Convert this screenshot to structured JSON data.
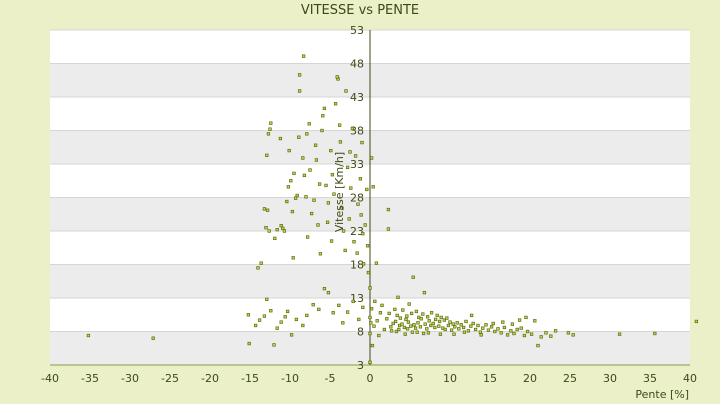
{
  "chart_data": {
    "type": "scatter",
    "title": "VITESSE vs PENTE",
    "xlabel": "Pente [%]",
    "ylabel": "Vitesse [Km/h]",
    "xlim": [
      -40,
      40
    ],
    "ylim": [
      3,
      53
    ],
    "xticks": [
      -40,
      -35,
      -30,
      -25,
      -20,
      -15,
      -10,
      -5,
      0,
      5,
      10,
      15,
      20,
      25,
      30,
      35,
      40
    ],
    "yticks": [
      3,
      8,
      13,
      18,
      23,
      28,
      33,
      38,
      43,
      48,
      53
    ],
    "grid": "horizontal bands",
    "colors": {
      "background": "#ecf0c8",
      "band_light": "#ffffff",
      "band_dark": "#ececec",
      "point_fill": "#c8d84a",
      "point_stroke": "#556b10",
      "text": "#3a4a14"
    },
    "series": [
      {
        "points": [
          [
            -35.2,
            7.4
          ],
          [
            -27.1,
            7.0
          ],
          [
            -15.2,
            10.5
          ],
          [
            -15.1,
            6.2
          ],
          [
            -14.3,
            8.9
          ],
          [
            -13.8,
            9.7
          ],
          [
            -13.2,
            10.3
          ],
          [
            -12.9,
            12.8
          ],
          [
            -12.4,
            11.1
          ],
          [
            -12.0,
            6.0
          ],
          [
            -11.6,
            8.5
          ],
          [
            -11.1,
            9.4
          ],
          [
            -10.6,
            10.2
          ],
          [
            -10.3,
            11.0
          ],
          [
            -9.8,
            7.5
          ],
          [
            -9.2,
            9.8
          ],
          [
            -8.4,
            8.9
          ],
          [
            -7.9,
            10.4
          ],
          [
            -7.1,
            12.0
          ],
          [
            -6.4,
            11.3
          ],
          [
            -5.7,
            14.4
          ],
          [
            -5.2,
            13.8
          ],
          [
            -4.6,
            10.8
          ],
          [
            -3.9,
            11.9
          ],
          [
            -3.4,
            9.3
          ],
          [
            -2.8,
            10.9
          ],
          [
            -2.1,
            12.5
          ],
          [
            -1.4,
            9.8
          ],
          [
            -0.9,
            11.6
          ],
          [
            -14.0,
            17.5
          ],
          [
            -13.6,
            18.2
          ],
          [
            -13.2,
            26.3
          ],
          [
            -12.8,
            26.1
          ],
          [
            -12.6,
            23.0
          ],
          [
            -13.0,
            23.5
          ],
          [
            -12.9,
            34.3
          ],
          [
            -12.7,
            37.5
          ],
          [
            -12.5,
            38.2
          ],
          [
            -12.4,
            39.1
          ],
          [
            -11.9,
            21.9
          ],
          [
            -11.6,
            23.2
          ],
          [
            -11.2,
            36.8
          ],
          [
            -11.1,
            23.8
          ],
          [
            -10.9,
            23.4
          ],
          [
            -10.7,
            23.0
          ],
          [
            -10.4,
            27.4
          ],
          [
            -10.2,
            29.6
          ],
          [
            -10.1,
            35.0
          ],
          [
            -9.9,
            30.5
          ],
          [
            -9.7,
            25.9
          ],
          [
            -9.5,
            31.6
          ],
          [
            -9.3,
            27.9
          ],
          [
            -9.1,
            28.3
          ],
          [
            -8.9,
            37.0
          ],
          [
            -8.8,
            43.9
          ],
          [
            -8.8,
            46.3
          ],
          [
            -8.4,
            33.9
          ],
          [
            -8.2,
            31.3
          ],
          [
            -8.0,
            28.1
          ],
          [
            -8.3,
            49.1
          ],
          [
            -7.9,
            37.5
          ],
          [
            -7.6,
            39.0
          ],
          [
            -7.5,
            32.1
          ],
          [
            -7.3,
            25.6
          ],
          [
            -7.0,
            27.6
          ],
          [
            -6.8,
            35.8
          ],
          [
            -6.7,
            33.6
          ],
          [
            -6.5,
            23.9
          ],
          [
            -6.3,
            30.0
          ],
          [
            -6.0,
            38.0
          ],
          [
            -5.9,
            40.2
          ],
          [
            -5.7,
            41.3
          ],
          [
            -5.5,
            29.8
          ],
          [
            -5.3,
            24.3
          ],
          [
            -5.2,
            27.2
          ],
          [
            -4.9,
            35.0
          ],
          [
            -4.7,
            31.4
          ],
          [
            -4.5,
            28.5
          ],
          [
            -4.3,
            42.0
          ],
          [
            -4.0,
            45.7
          ],
          [
            -3.8,
            38.8
          ],
          [
            -3.7,
            36.3
          ],
          [
            -3.5,
            26.4
          ],
          [
            -3.3,
            23.0
          ],
          [
            -3.1,
            20.1
          ],
          [
            -3.0,
            43.9
          ],
          [
            -2.8,
            32.5
          ],
          [
            -2.6,
            24.8
          ],
          [
            -2.4,
            29.4
          ],
          [
            -2.2,
            38.3
          ],
          [
            -2.0,
            21.4
          ],
          [
            -1.8,
            34.2
          ],
          [
            -1.6,
            19.7
          ],
          [
            -1.5,
            27.0
          ],
          [
            -1.2,
            30.8
          ],
          [
            -1.1,
            25.4
          ],
          [
            -0.9,
            22.6
          ],
          [
            -0.8,
            18.1
          ],
          [
            -0.6,
            23.9
          ],
          [
            -0.4,
            29.2
          ],
          [
            -0.3,
            20.8
          ],
          [
            -0.2,
            16.8
          ],
          [
            -4.1,
            46.0
          ],
          [
            -1.0,
            36.2
          ],
          [
            -6.2,
            19.6
          ],
          [
            -4.8,
            21.5
          ],
          [
            -7.8,
            22.1
          ],
          [
            -9.6,
            19.0
          ],
          [
            -2.5,
            34.8
          ],
          [
            0.0,
            3.4
          ],
          [
            0.0,
            7.7
          ],
          [
            0.0,
            10.1
          ],
          [
            0.0,
            14.5
          ],
          [
            0.1,
            9.3
          ],
          [
            0.2,
            11.4
          ],
          [
            0.3,
            5.9
          ],
          [
            0.2,
            33.9
          ],
          [
            0.4,
            29.6
          ],
          [
            0.8,
            18.2
          ],
          [
            0.5,
            8.8
          ],
          [
            0.6,
            12.5
          ],
          [
            0.9,
            9.6
          ],
          [
            1.1,
            7.4
          ],
          [
            1.3,
            10.8
          ],
          [
            1.5,
            11.9
          ],
          [
            1.8,
            8.3
          ],
          [
            2.1,
            9.9
          ],
          [
            2.4,
            10.7
          ],
          [
            2.3,
            26.2
          ],
          [
            2.3,
            23.3
          ],
          [
            2.6,
            8.7
          ],
          [
            2.9,
            9.2
          ],
          [
            3.1,
            11.3
          ],
          [
            3.2,
            9.5
          ],
          [
            3.4,
            10.4
          ],
          [
            3.5,
            13.1
          ],
          [
            3.7,
            8.9
          ],
          [
            3.8,
            10.0
          ],
          [
            4.0,
            9.1
          ],
          [
            4.1,
            11.2
          ],
          [
            4.3,
            8.6
          ],
          [
            4.5,
            9.8
          ],
          [
            4.6,
            10.3
          ],
          [
            4.8,
            9.4
          ],
          [
            4.9,
            12.1
          ],
          [
            5.1,
            8.8
          ],
          [
            5.2,
            10.7
          ],
          [
            5.4,
            16.1
          ],
          [
            5.5,
            9.0
          ],
          [
            5.7,
            8.5
          ],
          [
            5.8,
            11.0
          ],
          [
            6.0,
            9.3
          ],
          [
            6.1,
            10.1
          ],
          [
            6.3,
            8.7
          ],
          [
            6.4,
            9.9
          ],
          [
            6.6,
            10.6
          ],
          [
            6.8,
            13.8
          ],
          [
            6.9,
            9.1
          ],
          [
            7.1,
            8.4
          ],
          [
            7.2,
            10.2
          ],
          [
            7.4,
            9.6
          ],
          [
            7.6,
            8.9
          ],
          [
            7.7,
            10.8
          ],
          [
            7.9,
            9.2
          ],
          [
            8.1,
            8.6
          ],
          [
            8.2,
            9.8
          ],
          [
            8.4,
            10.4
          ],
          [
            8.6,
            8.8
          ],
          [
            8.7,
            9.5
          ],
          [
            8.9,
            10.1
          ],
          [
            9.1,
            8.5
          ],
          [
            9.3,
            9.7
          ],
          [
            9.4,
            8.3
          ],
          [
            9.6,
            10.0
          ],
          [
            9.8,
            8.9
          ],
          [
            10.0,
            9.4
          ],
          [
            10.2,
            8.2
          ],
          [
            10.4,
            9.1
          ],
          [
            10.6,
            8.7
          ],
          [
            10.9,
            9.3
          ],
          [
            11.1,
            8.4
          ],
          [
            11.4,
            9.0
          ],
          [
            11.7,
            8.6
          ],
          [
            12.0,
            9.5
          ],
          [
            12.3,
            8.1
          ],
          [
            12.6,
            8.8
          ],
          [
            12.9,
            9.2
          ],
          [
            13.2,
            8.3
          ],
          [
            13.5,
            8.9
          ],
          [
            13.8,
            7.9
          ],
          [
            14.1,
            8.5
          ],
          [
            14.5,
            9.0
          ],
          [
            14.8,
            8.2
          ],
          [
            15.2,
            8.7
          ],
          [
            15.6,
            8.0
          ],
          [
            16.0,
            8.4
          ],
          [
            16.4,
            7.8
          ],
          [
            16.8,
            8.6
          ],
          [
            17.2,
            7.5
          ],
          [
            17.6,
            8.1
          ],
          [
            18.0,
            7.7
          ],
          [
            18.4,
            8.3
          ],
          [
            18.9,
            8.5
          ],
          [
            19.3,
            7.4
          ],
          [
            19.7,
            8.0
          ],
          [
            20.2,
            7.6
          ],
          [
            21.0,
            5.9
          ],
          [
            21.4,
            7.2
          ],
          [
            22.0,
            7.8
          ],
          [
            22.6,
            7.3
          ],
          [
            23.2,
            8.1
          ],
          [
            24.8,
            7.8
          ],
          [
            25.4,
            7.5
          ],
          [
            31.2,
            7.6
          ],
          [
            35.6,
            7.7
          ],
          [
            40.8,
            9.5
          ],
          [
            3.3,
            8.0
          ],
          [
            4.7,
            8.4
          ],
          [
            5.3,
            7.9
          ],
          [
            6.7,
            7.7
          ],
          [
            7.3,
            7.8
          ],
          [
            8.8,
            7.6
          ],
          [
            10.5,
            7.6
          ],
          [
            11.8,
            7.9
          ],
          [
            12.7,
            10.4
          ],
          [
            13.9,
            7.5
          ],
          [
            15.4,
            9.2
          ],
          [
            16.6,
            9.4
          ],
          [
            17.8,
            9.1
          ],
          [
            18.7,
            9.7
          ],
          [
            19.5,
            10.1
          ],
          [
            20.6,
            9.6
          ],
          [
            2.7,
            8.1
          ],
          [
            3.6,
            8.3
          ],
          [
            4.4,
            7.6
          ],
          [
            5.9,
            7.9
          ]
        ]
      }
    ]
  }
}
